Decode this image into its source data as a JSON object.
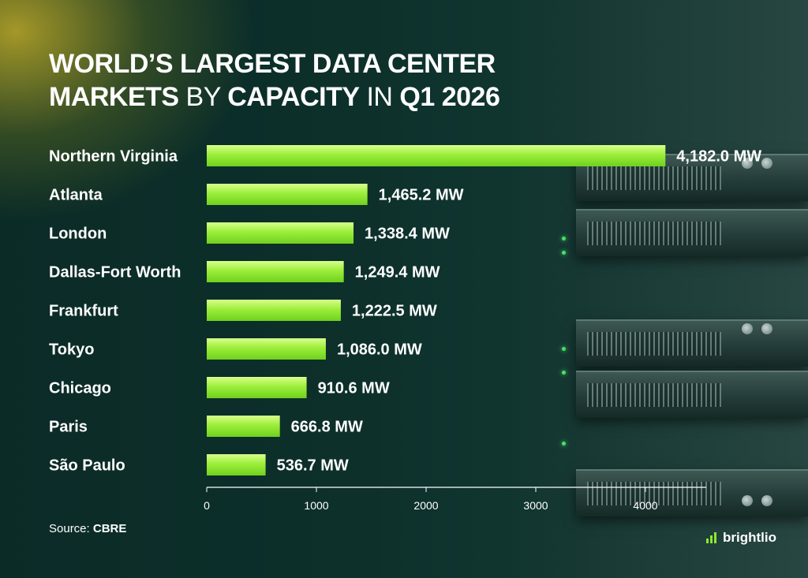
{
  "title": {
    "parts": [
      {
        "text": "WORLD’S LARGEST DATA CENTER ",
        "weight": "bold"
      },
      {
        "text": "MARKETS",
        "weight": "bold"
      },
      {
        "text": " BY ",
        "weight": "normal"
      },
      {
        "text": "CAPACITY",
        "weight": "bold"
      },
      {
        "text": " IN ",
        "weight": "normal"
      },
      {
        "text": "Q1 2026",
        "weight": "bold"
      }
    ]
  },
  "chart_data": {
    "type": "bar",
    "orientation": "horizontal",
    "categories": [
      "Northern Virginia",
      "Atlanta",
      "London",
      "Dallas-Fort Worth",
      "Frankfurt",
      "Tokyo",
      "Chicago",
      "Paris",
      "São Paulo"
    ],
    "values": [
      4182.0,
      1465.2,
      1338.4,
      1249.4,
      1222.5,
      1086.0,
      910.6,
      666.8,
      536.7
    ],
    "value_labels": [
      "4,182.0 MW",
      "1,465.2 MW",
      "1,338.4 MW",
      "1,249.4 MW",
      "1,222.5 MW",
      "1,086.0 MW",
      "910.6 MW",
      "666.8 MW",
      "536.7 MW"
    ],
    "xlim": [
      0,
      4500
    ],
    "xticks": [
      0,
      1000,
      2000,
      3000,
      4000
    ],
    "grid": false,
    "bar_color": "#8ee82e"
  },
  "source": {
    "label": "Source: ",
    "name": "CBRE"
  },
  "brand": {
    "name": "brightlio",
    "icon": "brightlio-logo-icon"
  }
}
